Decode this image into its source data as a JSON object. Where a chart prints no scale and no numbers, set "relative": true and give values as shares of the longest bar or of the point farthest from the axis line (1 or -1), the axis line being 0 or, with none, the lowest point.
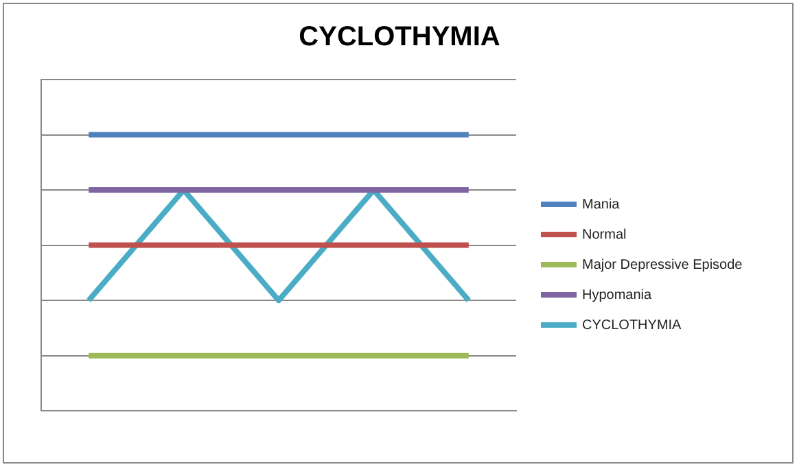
{
  "chart_data": {
    "type": "line",
    "title": "CYCLOTHYMIA",
    "relative": true,
    "categories": [
      null,
      null,
      null,
      null,
      null
    ],
    "series": [
      {
        "name": "Mania",
        "color": "#4f81bd",
        "values": [
          1,
          1,
          1,
          1,
          1
        ]
      },
      {
        "name": "Normal",
        "color": "#c0504d",
        "values": [
          0.6,
          0.6,
          0.6,
          0.6,
          0.6
        ]
      },
      {
        "name": "Major Depressive Episode",
        "color": "#9bbb59",
        "values": [
          0.2,
          0.2,
          0.2,
          0.2,
          0.2
        ]
      },
      {
        "name": "Hypomania",
        "color": "#8064a2",
        "values": [
          0.8,
          0.8,
          0.8,
          0.8,
          0.8
        ]
      },
      {
        "name": "CYCLOTHYMIA",
        "color": "#4bacc6",
        "values": [
          0.4,
          0.8,
          0.4,
          0.8,
          0.4
        ]
      }
    ],
    "grid": "y",
    "legend": "right",
    "marker": "none",
    "line_style": "solid"
  }
}
